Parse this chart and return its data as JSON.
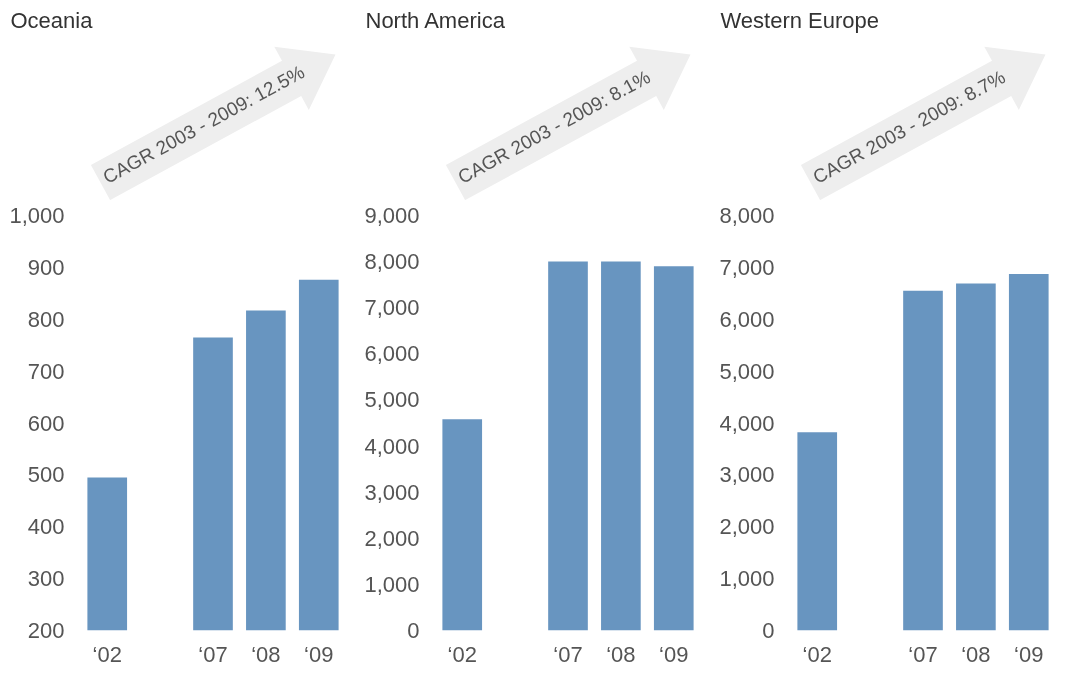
{
  "chart_data": [
    {
      "type": "bar",
      "title": "Oceania",
      "categories": [
        "‘02",
        null,
        "‘07",
        "‘08",
        "‘09"
      ],
      "values": [
        495,
        null,
        765,
        817,
        876
      ],
      "color": "#6895c0",
      "ylim": [
        200,
        1000
      ],
      "yticks": [
        200,
        300,
        400,
        500,
        600,
        700,
        800,
        900,
        {
          "value": 1000,
          "label": "1,000"
        }
      ],
      "grid": false,
      "annotations": [
        "CAGR 2003 - 2009: 12.5%"
      ]
    },
    {
      "type": "bar",
      "title": "North America",
      "categories": [
        "‘02",
        null,
        "‘07",
        "‘08",
        "‘09"
      ],
      "values": [
        4580,
        null,
        8000,
        8000,
        7900
      ],
      "color": "#6895c0",
      "ylim": [
        0,
        9000
      ],
      "yticks": [
        0,
        {
          "value": 1000,
          "label": "1,000"
        },
        {
          "value": 2000,
          "label": "2,000"
        },
        {
          "value": 3000,
          "label": "3,000"
        },
        {
          "value": 4000,
          "label": "4,000"
        },
        {
          "value": 5000,
          "label": "5,000"
        },
        {
          "value": 6000,
          "label": "6,000"
        },
        {
          "value": 7000,
          "label": "7,000"
        },
        {
          "value": 8000,
          "label": "8,000"
        },
        {
          "value": 9000,
          "label": "9,000"
        }
      ],
      "grid": false,
      "annotations": [
        "CAGR 2003 - 2009: 8.1%"
      ]
    },
    {
      "type": "bar",
      "title": "Western Europe",
      "categories": [
        "‘02",
        null,
        "‘07",
        "‘08",
        "‘09"
      ],
      "values": [
        3820,
        null,
        6550,
        6690,
        6870
      ],
      "color": "#6895c0",
      "ylim": [
        0,
        8000
      ],
      "yticks": [
        0,
        {
          "value": 1000,
          "label": "1,000"
        },
        {
          "value": 2000,
          "label": "2,000"
        },
        {
          "value": 3000,
          "label": "3,000"
        },
        {
          "value": 4000,
          "label": "4,000"
        },
        {
          "value": 5000,
          "label": "5,000"
        },
        {
          "value": 6000,
          "label": "6,000"
        },
        {
          "value": 7000,
          "label": "7,000"
        },
        {
          "value": 8000,
          "label": "8,000"
        }
      ],
      "grid": false,
      "annotations": [
        "CAGR 2003 - 2009: 8.7%"
      ]
    }
  ]
}
